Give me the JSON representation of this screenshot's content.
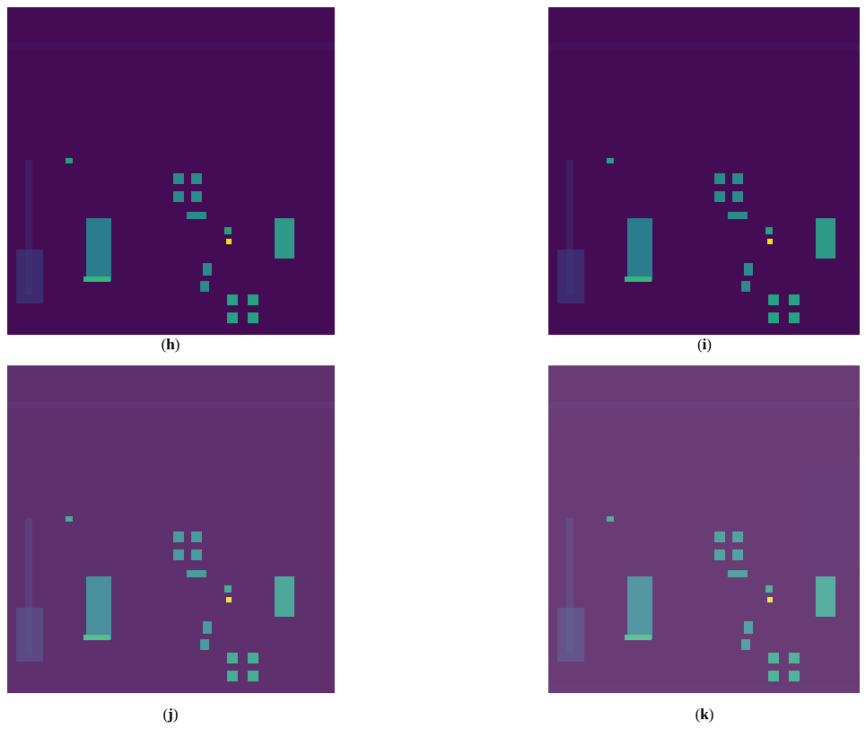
{
  "figure": {
    "panels": [
      {
        "caption": "(h)"
      },
      {
        "caption": "(i)"
      },
      {
        "caption": "(j)"
      },
      {
        "caption": "(k)"
      }
    ]
  }
}
